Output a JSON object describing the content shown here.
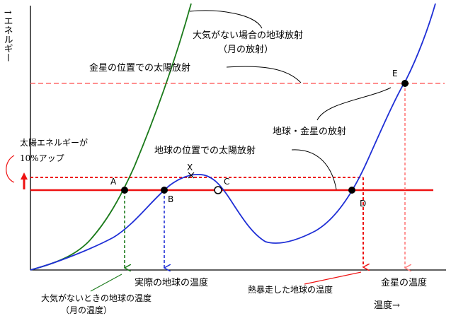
{
  "axes": {
    "y_label": "↑エネルギー",
    "x_label": "温度→"
  },
  "curves": {
    "no_atmosphere_radiation": {
      "label_line1": "大気がない場合の地球放射",
      "label_line2": "（月の放射）",
      "color": "#1a7a1a"
    },
    "earth_venus_radiation": {
      "label": "地球・金星の放射",
      "color": "#1f2fd6"
    }
  },
  "levels": {
    "venus_solar": {
      "label": "金星の位置での太陽放射",
      "color": "#ff6a6a"
    },
    "earth_solar": {
      "label": "地球の位置での太陽放射",
      "color": "#ee1111"
    },
    "solar_up": {
      "label_line1": "太陽エネルギーが",
      "label_line2": "10%アップ",
      "color": "#ee1111"
    }
  },
  "points": {
    "A": "A",
    "B": "B",
    "C": "C",
    "D": "D",
    "E": "E",
    "X": "X"
  },
  "temperatures": {
    "moon_line1": "大気がないときの地球の温度",
    "moon_line2": "（月の温度）",
    "actual_earth": "実際の地球の温度",
    "runaway_earth": "熱暴走した地球の温度",
    "venus": "金星の温度"
  },
  "colors": {
    "axis": "#000000",
    "green_arrow": "#1a7a1a",
    "blue_arrow": "#1f2fd6",
    "red_arrow": "#ee1111",
    "pink_arrow": "#ff7b7b"
  }
}
